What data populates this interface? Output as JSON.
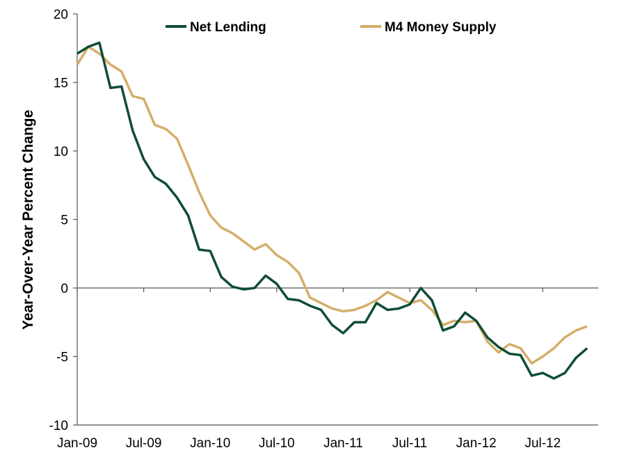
{
  "chart_data": {
    "type": "line",
    "title": "",
    "xlabel": "",
    "ylabel": "Year-Over-Year Percent Change",
    "ylim": [
      -10,
      20
    ],
    "yticks": [
      -10,
      -5,
      0,
      5,
      10,
      15,
      20
    ],
    "x_tick_labels": [
      "Jan-09",
      "Jul-09",
      "Jan-10",
      "Jul-10",
      "Jan-11",
      "Jul-11",
      "Jan-12",
      "Jul-12"
    ],
    "x_tick_positions": [
      0,
      6,
      12,
      18,
      24,
      30,
      36,
      42
    ],
    "x_range": [
      0,
      47
    ],
    "grid": false,
    "zero_line": true,
    "legend": {
      "placement": "top"
    },
    "series": [
      {
        "name": "Net Lending",
        "color": "#0f4d33",
        "values": [
          17.1,
          17.6,
          17.9,
          14.6,
          14.7,
          11.5,
          9.4,
          8.1,
          7.6,
          6.6,
          5.3,
          2.8,
          2.7,
          0.8,
          0.1,
          -0.1,
          0.0,
          0.9,
          0.3,
          -0.8,
          -0.9,
          -1.3,
          -1.6,
          -2.7,
          -3.3,
          -2.5,
          -2.5,
          -1.1,
          -1.6,
          -1.5,
          -1.2,
          0.0,
          -0.9,
          -3.1,
          -2.8,
          -1.8,
          -2.4,
          -3.6,
          -4.3,
          -4.8,
          -4.9,
          -6.4,
          -6.2,
          -6.6,
          -6.2,
          -5.1,
          -4.4
        ]
      },
      {
        "name": "M4 Money Supply",
        "color": "#d4ae6a",
        "values": [
          16.3,
          17.6,
          17.1,
          16.3,
          15.8,
          14.0,
          13.8,
          11.9,
          11.6,
          10.9,
          9.0,
          7.0,
          5.3,
          4.4,
          4.0,
          3.4,
          2.8,
          3.2,
          2.4,
          1.9,
          1.1,
          -0.7,
          -1.1,
          -1.5,
          -1.7,
          -1.6,
          -1.3,
          -0.9,
          -0.3,
          -0.7,
          -1.1,
          -0.9,
          -1.6,
          -2.7,
          -2.4,
          -2.5,
          -2.4,
          -3.9,
          -4.7,
          -4.1,
          -4.4,
          -5.5,
          -5.0,
          -4.4,
          -3.6,
          -3.1,
          -2.8
        ]
      }
    ]
  }
}
